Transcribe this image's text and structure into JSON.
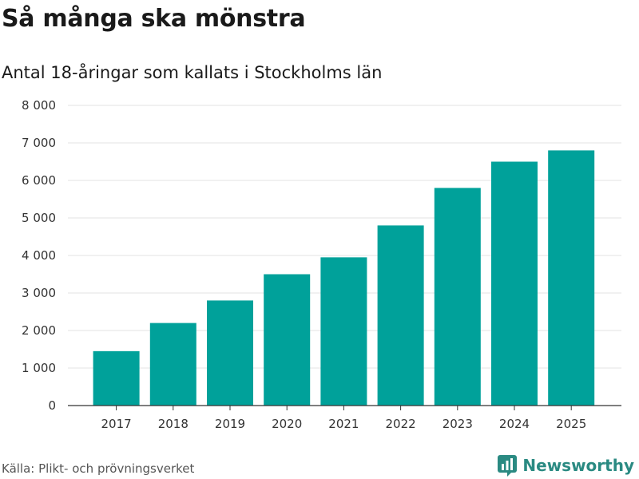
{
  "title": "Så många ska mönstra",
  "subtitle": "Antal 18-åringar som kallats i Stockholms län",
  "source": "Källa: Plikt- och prövningsverket",
  "brand": {
    "name": "Newsworthy",
    "icon": "newsworthy-logo-icon",
    "color": "#2a8a82"
  },
  "chart_data": {
    "type": "bar",
    "categories": [
      "2017",
      "2018",
      "2019",
      "2020",
      "2021",
      "2022",
      "2023",
      "2024",
      "2025"
    ],
    "values": [
      1450,
      2200,
      2800,
      3500,
      3950,
      4800,
      5800,
      6500,
      6800
    ],
    "ylim": [
      0,
      8000
    ],
    "yticks": [
      0,
      1000,
      2000,
      3000,
      4000,
      5000,
      6000,
      7000,
      8000
    ],
    "ytick_labels": [
      "0",
      "1 000",
      "2 000",
      "3 000",
      "4 000",
      "5 000",
      "6 000",
      "7 000",
      "8 000"
    ],
    "xlabel": "",
    "ylabel": "",
    "grid": true,
    "bar_color": "#00a19a"
  }
}
